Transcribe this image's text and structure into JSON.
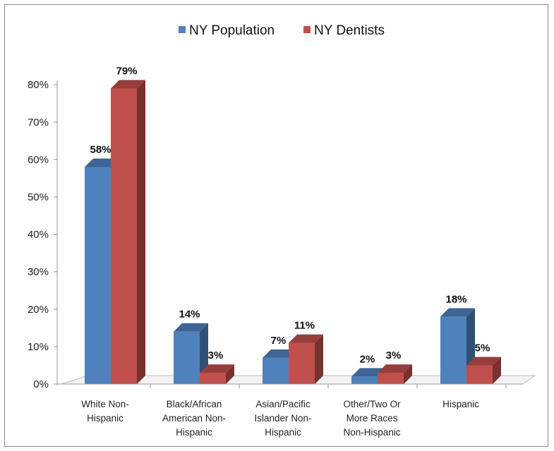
{
  "chart_data": {
    "type": "bar",
    "title": "",
    "xlabel": "",
    "ylabel": "",
    "ylim": [
      0,
      80
    ],
    "yticks": [
      "0%",
      "10%",
      "20%",
      "30%",
      "40%",
      "50%",
      "60%",
      "70%",
      "80%"
    ],
    "categories": [
      [
        "White Non-",
        "Hispanic"
      ],
      [
        "Black/African",
        "American Non-",
        "Hispanic"
      ],
      [
        "Asian/Pacific",
        "Islander Non-",
        "Hispanic"
      ],
      [
        "Other/Two Or",
        "More Races",
        "Non-Hispanic"
      ],
      [
        "Hispanic"
      ]
    ],
    "series": [
      {
        "name": "NY Population",
        "color": "#4f81bd",
        "values": [
          58,
          14,
          7,
          2,
          18
        ],
        "labels": [
          "58%",
          "14%",
          "7%",
          "2%",
          "18%"
        ]
      },
      {
        "name": "NY Dentists",
        "color": "#c0504d",
        "values": [
          79,
          3,
          11,
          3,
          5
        ],
        "labels": [
          "79%",
          "3%",
          "11%",
          "3%",
          "5%"
        ]
      }
    ],
    "legend": "top-center",
    "grid": false,
    "style": "3d-clustered-column"
  }
}
